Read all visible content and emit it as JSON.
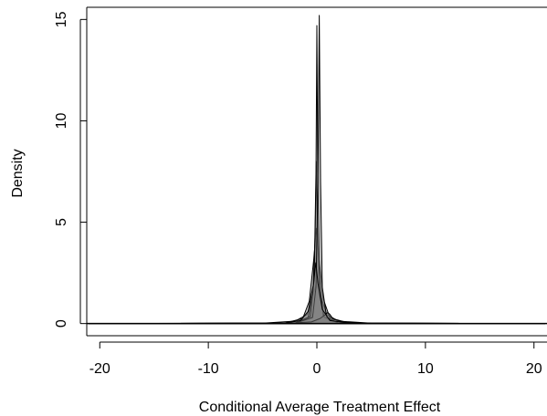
{
  "chart_data": {
    "type": "area",
    "title": "",
    "xlabel": "Conditional Average Treatment Effect",
    "ylabel": "Density",
    "xlim": [
      -21.2,
      21.2
    ],
    "ylim": [
      -0.6,
      15.6
    ],
    "x_ticks": [
      -20,
      -10,
      0,
      10,
      20
    ],
    "x_tick_labels": [
      "-20",
      "-10",
      "0",
      "10",
      "20"
    ],
    "y_ticks": [
      0,
      5,
      10,
      15
    ],
    "y_tick_labels": [
      "0",
      "5",
      "10",
      "15"
    ],
    "grid": false,
    "legend": "none",
    "fill_color": "#808080",
    "fill_opacity": 0.45,
    "line_color": "#000000",
    "series": [
      {
        "x": [
          -21,
          -5,
          -2,
          -0.9,
          -0.4,
          0,
          0.4,
          0.9,
          2,
          5,
          21
        ],
        "y": [
          0,
          0.02,
          0.12,
          0.45,
          1.3,
          2.1,
          1.3,
          0.45,
          0.12,
          0.02,
          0
        ]
      },
      {
        "x": [
          -21,
          -3,
          -1.3,
          -0.7,
          -0.3,
          -0.05,
          0.2,
          0.6,
          1.2,
          3,
          21
        ],
        "y": [
          0,
          0.02,
          0.25,
          1.1,
          3.1,
          4.7,
          3.2,
          1.2,
          0.28,
          0.02,
          0
        ]
      },
      {
        "x": [
          -21,
          -2,
          -0.8,
          -0.35,
          -0.15,
          -0.05,
          0.05,
          0.25,
          0.7,
          2,
          21
        ],
        "y": [
          0,
          0.02,
          0.3,
          1.6,
          4.5,
          8.0,
          4.6,
          1.4,
          0.28,
          0.02,
          0
        ]
      },
      {
        "x": [
          -21,
          -2,
          -0.6,
          -0.25,
          -0.08,
          0,
          0.08,
          0.25,
          0.6,
          2,
          21
        ],
        "y": [
          0,
          0.02,
          0.35,
          2.2,
          7.5,
          14.7,
          7.5,
          2.2,
          0.35,
          0.02,
          0
        ]
      },
      {
        "x": [
          -21,
          -2,
          -0.4,
          -0.08,
          0.1,
          0.22,
          0.34,
          0.5,
          0.9,
          2,
          21
        ],
        "y": [
          0,
          0.02,
          0.3,
          1.8,
          7.0,
          15.2,
          7.0,
          1.8,
          0.3,
          0.02,
          0
        ]
      },
      {
        "x": [
          -21,
          -2.5,
          -0.5,
          0.3,
          0.8,
          1.0,
          1.2,
          1.5,
          2.5,
          5,
          21
        ],
        "y": [
          0,
          0.02,
          0.08,
          0.25,
          0.45,
          0.55,
          0.45,
          0.22,
          0.07,
          0.01,
          0
        ]
      },
      {
        "x": [
          -21,
          -3,
          -1.5,
          -0.8,
          -0.3,
          -0.1,
          0.1,
          0.5,
          1.2,
          3,
          21
        ],
        "y": [
          0,
          0.02,
          0.15,
          0.6,
          2.0,
          3.0,
          2.0,
          0.7,
          0.15,
          0.02,
          0
        ]
      }
    ]
  }
}
